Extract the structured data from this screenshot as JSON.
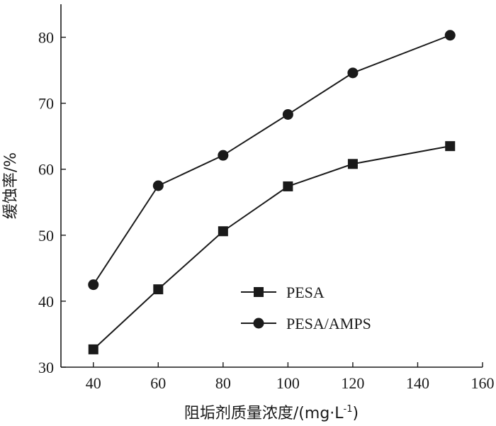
{
  "chart_data": {
    "type": "line",
    "xlabel": "阻垢剂质量浓度/(mg·L",
    "xlabel_sup": "-1",
    "xlabel_close": ")",
    "ylabel": "缓蚀率/%",
    "xlim": [
      30,
      160
    ],
    "ylim": [
      30,
      85
    ],
    "xticks": [
      40,
      60,
      80,
      100,
      120,
      140,
      160
    ],
    "yticks": [
      30,
      40,
      50,
      60,
      70,
      80
    ],
    "grid": false,
    "legend_position": "center-right",
    "series": [
      {
        "name": "PESA",
        "marker": "square",
        "x": [
          40,
          60,
          80,
          100,
          120,
          150
        ],
        "y": [
          32.7,
          41.8,
          50.6,
          57.4,
          60.8,
          63.5
        ]
      },
      {
        "name": "PESA/AMPS",
        "marker": "circle",
        "x": [
          40,
          60,
          80,
          100,
          120,
          150
        ],
        "y": [
          42.5,
          57.5,
          62.1,
          68.3,
          74.6,
          80.3
        ]
      }
    ],
    "colors": {
      "ink": "#1a1a1a"
    }
  }
}
